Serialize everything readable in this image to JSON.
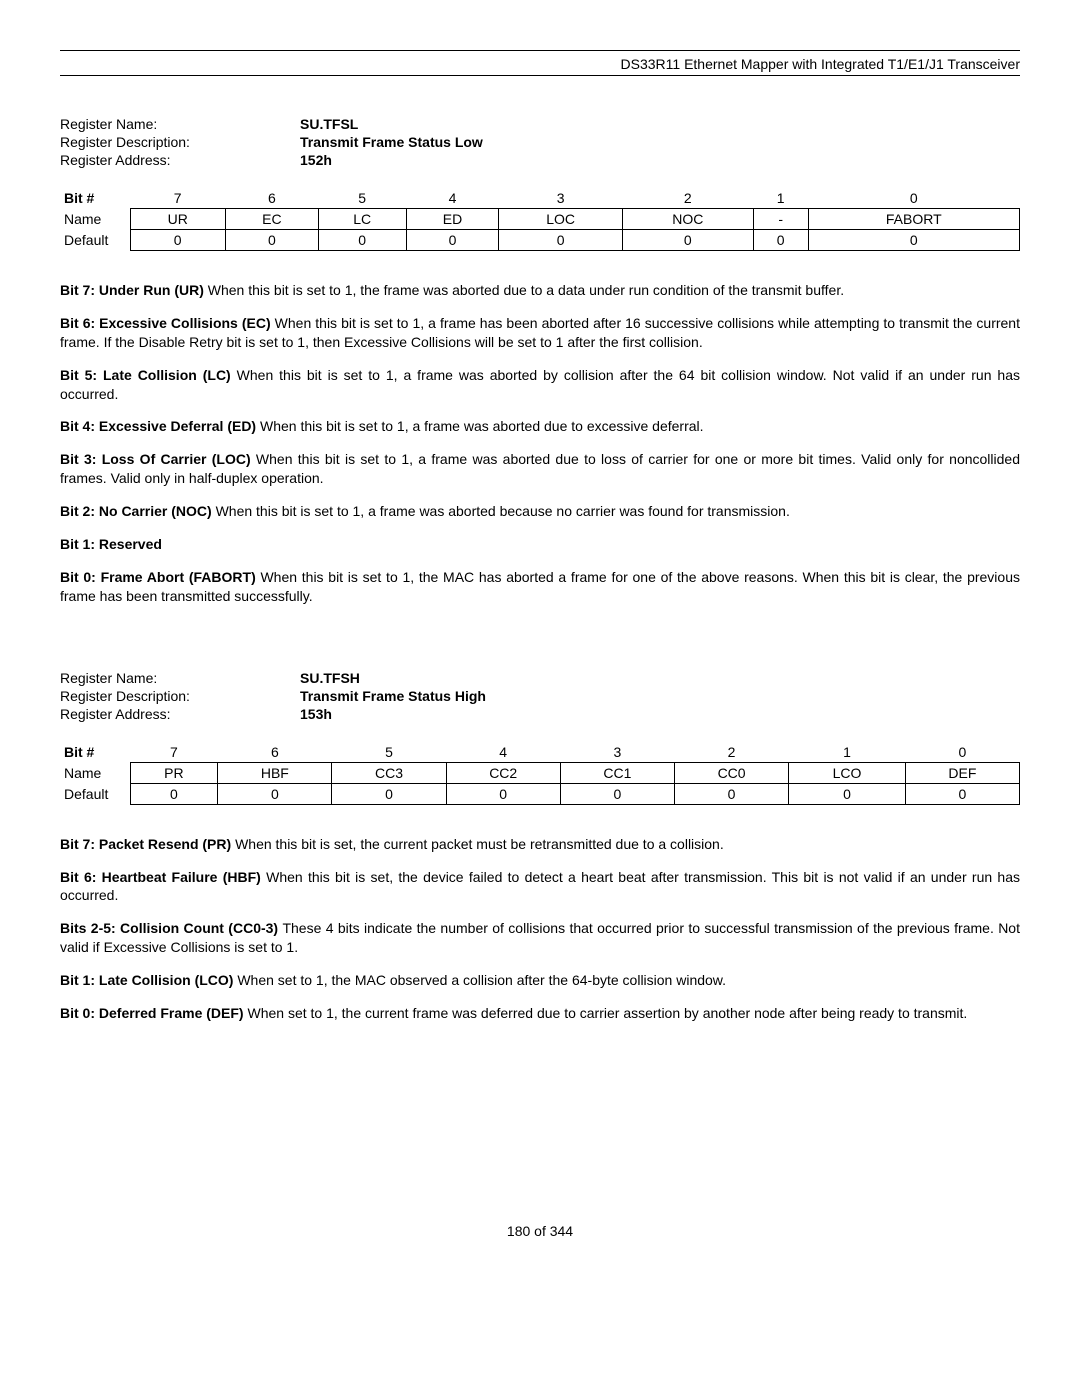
{
  "header": {
    "title": "DS33R11 Ethernet Mapper with Integrated T1/E1/J1 Transceiver"
  },
  "register1": {
    "name_label": "Register Name:",
    "name_value": "SU.TFSL",
    "desc_label": "Register Description:",
    "desc_value": "Transmit Frame Status Low",
    "addr_label": "Register Address:",
    "addr_value": "152h",
    "bit_header_label": "Bit #",
    "bits": [
      "7",
      "6",
      "5",
      "4",
      "3",
      "2",
      "1",
      "0"
    ],
    "name_row_label": "Name",
    "names": [
      "UR",
      "EC",
      "LC",
      "ED",
      "LOC",
      "NOC",
      "-",
      "FABORT"
    ],
    "default_row_label": "Default",
    "defaults": [
      "0",
      "0",
      "0",
      "0",
      "0",
      "0",
      "0",
      "0"
    ]
  },
  "desc1": {
    "b7_bold": "Bit 7: Under Run (UR) ",
    "b7_text": "When this bit is set to 1, the frame was aborted due to a data under run condition of the transmit buffer.",
    "b6_bold": "Bit 6: Excessive Collisions (EC) ",
    "b6_text": "When this bit is set to 1, a frame has been aborted after 16 successive collisions while attempting to transmit the current frame. If the Disable Retry bit is set to 1, then Excessive Collisions will be set to 1 after the first collision.",
    "b5_bold": "Bit 5: Late Collision (LC) ",
    "b5_text": "When this bit is set to 1, a frame was aborted by collision after the 64 bit collision window. Not valid if an under run has occurred.",
    "b4_bold": "Bit 4: Excessive Deferral (ED) ",
    "b4_text": "When this bit is set to 1, a frame was aborted due to excessive deferral.",
    "b3_bold": "Bit 3: Loss Of Carrier (LOC) ",
    "b3_text": "When this bit is set to 1, a frame was aborted due to loss of carrier for one or more bit times. Valid only for noncollided frames. Valid only in half-duplex operation.",
    "b2_bold": "Bit 2: No Carrier (NOC) ",
    "b2_text": "When this bit is set to 1, a frame was aborted because no carrier was found for transmission.",
    "b1_bold": "Bit 1: Reserved",
    "b0_bold": "Bit 0: Frame Abort (FABORT) ",
    "b0_text": "When this bit is set to 1, the MAC has aborted a frame for one of the above reasons. When this bit is clear, the previous frame has been transmitted successfully."
  },
  "register2": {
    "name_label": "Register Name:",
    "name_value": "SU.TFSH",
    "desc_label": "Register Description:",
    "desc_value": "Transmit Frame Status High",
    "addr_label": "Register Address:",
    "addr_value": "153h",
    "bit_header_label": "Bit #",
    "bits": [
      "7",
      "6",
      "5",
      "4",
      "3",
      "2",
      "1",
      "0"
    ],
    "name_row_label": "Name",
    "names": [
      "PR",
      "HBF",
      "CC3",
      "CC2",
      "CC1",
      "CC0",
      "LCO",
      "DEF"
    ],
    "default_row_label": "Default",
    "defaults": [
      "0",
      "0",
      "0",
      "0",
      "0",
      "0",
      "0",
      "0"
    ]
  },
  "desc2": {
    "b7_bold": "Bit 7: Packet Resend (PR) ",
    "b7_text": "When this bit is set, the current packet must be retransmitted due to a collision.",
    "b6_bold": "Bit 6: Heartbeat Failure (HBF) ",
    "b6_text": "When this bit is set, the device failed to detect a heart beat after transmission. This bit is not valid if an under run has occurred.",
    "b25_bold": "Bits 2-5: Collision Count (CC0-3) ",
    "b25_text": "These 4 bits indicate the number of collisions that occurred prior to successful transmission of the previous frame. Not valid if Excessive Collisions is set to 1.",
    "b1_bold": "Bit 1: Late Collision (LCO) ",
    "b1_text": "When set to 1, the MAC observed a collision after the 64-byte collision window.",
    "b0_bold": "Bit 0: Deferred Frame (DEF) ",
    "b0_text": "When set to 1, the current frame was deferred due to carrier assertion by another node after being ready to transmit."
  },
  "footer": {
    "page": "180 of 344"
  }
}
